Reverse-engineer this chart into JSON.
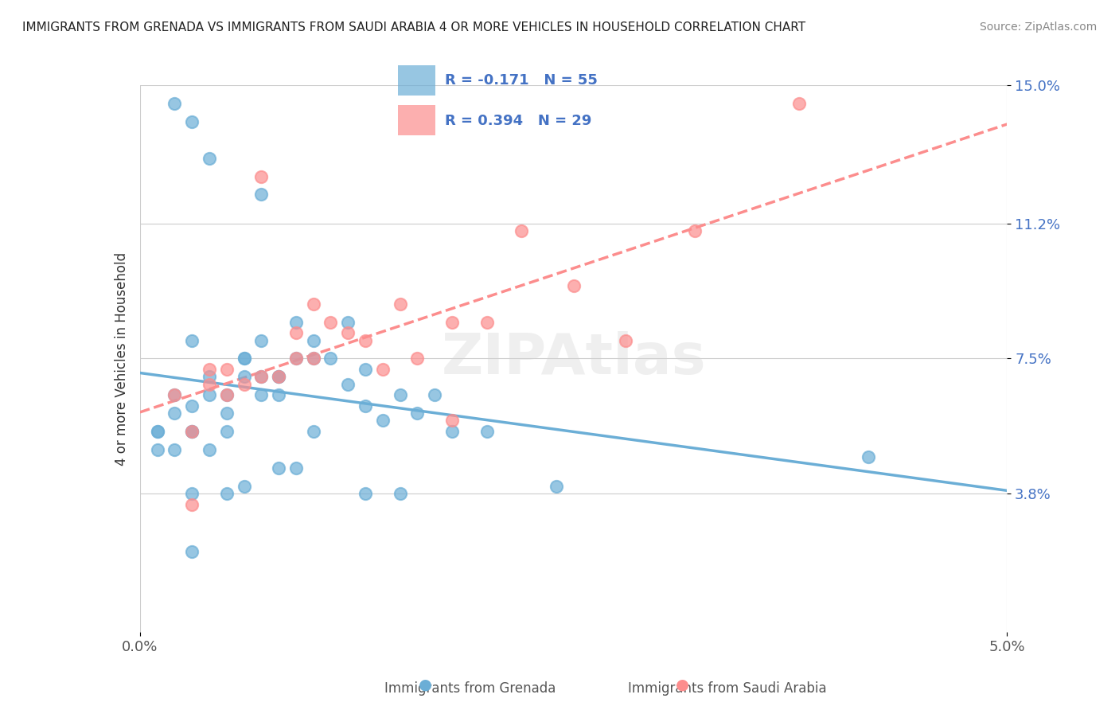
{
  "title": "IMMIGRANTS FROM GRENADA VS IMMIGRANTS FROM SAUDI ARABIA 4 OR MORE VEHICLES IN HOUSEHOLD CORRELATION CHART",
  "source": "Source: ZipAtlas.com",
  "ylabel": "4 or more Vehicles in Household",
  "xlabel_grenada": "Immigrants from Grenada",
  "xlabel_saudi": "Immigrants from Saudi Arabia",
  "xlim": [
    0.0,
    0.05
  ],
  "ylim": [
    0.0,
    0.15
  ],
  "yticks": [
    0.038,
    0.075,
    0.112,
    0.15
  ],
  "ytick_labels": [
    "3.8%",
    "7.5%",
    "11.2%",
    "15.0%"
  ],
  "xticks": [
    0.0,
    0.05
  ],
  "xtick_labels": [
    "0.0%",
    "5.0%"
  ],
  "grenada_color": "#6baed6",
  "saudi_color": "#fc8d8d",
  "grenada_R": -0.171,
  "grenada_N": 55,
  "saudi_R": 0.394,
  "saudi_N": 29,
  "legend_R1": "R = -0.171",
  "legend_N1": "N = 55",
  "legend_R2": "R = 0.394",
  "legend_N2": "N = 29",
  "watermark": "ZIPAtlas",
  "grenada_x": [
    0.001,
    0.002,
    0.001,
    0.003,
    0.002,
    0.001,
    0.002,
    0.003,
    0.003,
    0.004,
    0.004,
    0.005,
    0.005,
    0.004,
    0.003,
    0.006,
    0.005,
    0.006,
    0.007,
    0.006,
    0.007,
    0.008,
    0.007,
    0.008,
    0.009,
    0.008,
    0.009,
    0.01,
    0.01,
    0.012,
    0.012,
    0.013,
    0.015,
    0.014,
    0.017,
    0.018,
    0.02,
    0.016,
    0.013,
    0.01,
    0.007,
    0.004,
    0.003,
    0.002,
    0.011,
    0.009,
    0.008,
    0.006,
    0.005,
    0.003,
    0.015,
    0.013,
    0.024,
    0.042,
    0.003
  ],
  "grenada_y": [
    0.055,
    0.05,
    0.05,
    0.055,
    0.06,
    0.055,
    0.065,
    0.055,
    0.062,
    0.05,
    0.065,
    0.06,
    0.065,
    0.07,
    0.08,
    0.075,
    0.055,
    0.07,
    0.07,
    0.075,
    0.08,
    0.07,
    0.065,
    0.065,
    0.075,
    0.07,
    0.085,
    0.075,
    0.08,
    0.085,
    0.068,
    0.072,
    0.065,
    0.058,
    0.065,
    0.055,
    0.055,
    0.06,
    0.062,
    0.055,
    0.12,
    0.13,
    0.14,
    0.145,
    0.075,
    0.045,
    0.045,
    0.04,
    0.038,
    0.038,
    0.038,
    0.038,
    0.04,
    0.048,
    0.022
  ],
  "saudi_x": [
    0.002,
    0.003,
    0.004,
    0.004,
    0.005,
    0.005,
    0.006,
    0.007,
    0.008,
    0.009,
    0.009,
    0.01,
    0.011,
    0.012,
    0.013,
    0.015,
    0.016,
    0.018,
    0.02,
    0.022,
    0.025,
    0.028,
    0.032,
    0.038,
    0.018,
    0.014,
    0.01,
    0.007,
    0.003
  ],
  "saudi_y": [
    0.065,
    0.055,
    0.068,
    0.072,
    0.065,
    0.072,
    0.068,
    0.07,
    0.07,
    0.075,
    0.082,
    0.075,
    0.085,
    0.082,
    0.08,
    0.09,
    0.075,
    0.085,
    0.085,
    0.11,
    0.095,
    0.08,
    0.11,
    0.145,
    0.058,
    0.072,
    0.09,
    0.125,
    0.035
  ]
}
